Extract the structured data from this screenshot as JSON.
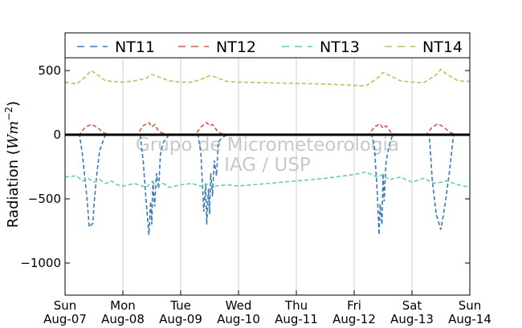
{
  "chart_data": {
    "type": "line",
    "ylabel": "Radiation (",
    "ylabel_unit_base": "Wm",
    "ylabel_unit_exp": "−2",
    "ylabel_close": ")",
    "ylim": [
      -1250,
      600
    ],
    "yticks": [
      500,
      0,
      -500,
      -1000
    ],
    "ytick_labels": [
      "500",
      "0",
      "−500",
      "−1000"
    ],
    "xlim": [
      0,
      7
    ],
    "xticks": [
      0,
      1,
      2,
      3,
      4,
      5,
      6,
      7
    ],
    "xtick_labels": [
      {
        "day": "Sun",
        "date": "Aug-07"
      },
      {
        "day": "Mon",
        "date": "Aug-08"
      },
      {
        "day": "Tue",
        "date": "Aug-09"
      },
      {
        "day": "Wed",
        "date": "Aug-10"
      },
      {
        "day": "Thu",
        "date": "Aug-11"
      },
      {
        "day": "Fri",
        "date": "Aug-12"
      },
      {
        "day": "Sat",
        "date": "Aug-13"
      },
      {
        "day": "Sun",
        "date": "Aug-14"
      }
    ],
    "grid": "vertical",
    "legend_position": "top",
    "watermark": [
      "Grupo de Micrometeorologia",
      "IAG / USP"
    ],
    "series": [
      {
        "name": "NT11",
        "color": "#3b7ab8",
        "x": [
          0.0,
          0.25,
          0.3,
          0.38,
          0.42,
          0.48,
          0.5,
          0.55,
          0.6,
          0.7,
          1.0,
          1.3,
          1.35,
          1.4,
          1.45,
          1.48,
          1.5,
          1.52,
          1.55,
          1.58,
          1.62,
          1.65,
          1.7,
          1.8,
          2.0,
          2.3,
          2.35,
          2.4,
          2.43,
          2.45,
          2.48,
          2.5,
          2.52,
          2.55,
          2.58,
          2.62,
          2.65,
          2.7,
          2.8,
          3.0,
          5.3,
          5.35,
          5.4,
          5.43,
          5.45,
          5.48,
          5.5,
          5.52,
          5.55,
          5.6,
          5.65,
          5.7,
          6.0,
          6.3,
          6.35,
          6.42,
          6.5,
          6.58,
          6.65,
          6.72,
          7.0
        ],
        "y": [
          0,
          0,
          -150,
          -500,
          -720,
          -690,
          -550,
          -300,
          -120,
          0,
          0,
          0,
          -200,
          -500,
          -780,
          -520,
          -700,
          -360,
          -560,
          -300,
          -420,
          -150,
          -60,
          0,
          0,
          0,
          -150,
          -600,
          -380,
          -700,
          -420,
          -620,
          -300,
          -480,
          -200,
          -320,
          -60,
          -30,
          0,
          0,
          0,
          -90,
          -450,
          -780,
          -540,
          -700,
          -300,
          -520,
          -220,
          -90,
          -20,
          0,
          0,
          0,
          -350,
          -620,
          -740,
          -520,
          -280,
          0,
          0
        ]
      },
      {
        "name": "NT12",
        "color": "#cc5a50",
        "x": [
          0.0,
          0.25,
          0.35,
          0.45,
          0.55,
          0.65,
          0.75,
          1.25,
          1.35,
          1.45,
          1.5,
          1.55,
          1.6,
          1.65,
          1.75,
          2.25,
          2.35,
          2.45,
          2.5,
          2.55,
          2.6,
          2.65,
          2.75,
          5.25,
          5.35,
          5.45,
          5.5,
          5.55,
          5.6,
          5.65,
          5.75,
          6.25,
          6.35,
          6.45,
          6.55,
          6.65,
          6.75,
          7.0
        ],
        "y": [
          0,
          0,
          60,
          80,
          60,
          20,
          0,
          0,
          70,
          95,
          60,
          80,
          40,
          20,
          0,
          0,
          60,
          95,
          70,
          80,
          50,
          20,
          0,
          0,
          60,
          85,
          50,
          70,
          40,
          10,
          0,
          0,
          60,
          85,
          60,
          20,
          0,
          0
        ]
      },
      {
        "name": "NT13",
        "color": "#5fcfb0",
        "x": [
          0.0,
          0.2,
          0.3,
          0.4,
          0.5,
          0.6,
          0.7,
          0.8,
          0.9,
          1.0,
          1.2,
          1.4,
          1.5,
          1.6,
          1.7,
          1.8,
          2.0,
          2.2,
          2.4,
          2.5,
          2.6,
          2.8,
          3.0,
          3.5,
          4.0,
          4.5,
          5.0,
          5.2,
          5.4,
          5.5,
          5.6,
          5.8,
          6.0,
          6.2,
          6.4,
          6.6,
          6.8,
          7.0
        ],
        "y": [
          -330,
          -320,
          -360,
          -340,
          -370,
          -350,
          -380,
          -360,
          -390,
          -400,
          -380,
          -410,
          -370,
          -400,
          -380,
          -410,
          -390,
          -380,
          -410,
          -370,
          -400,
          -390,
          -400,
          -380,
          -360,
          -340,
          -310,
          -290,
          -330,
          -310,
          -350,
          -330,
          -370,
          -340,
          -380,
          -360,
          -390,
          -410
        ]
      },
      {
        "name": "NT14",
        "color": "#b5c45e",
        "x": [
          0.0,
          0.2,
          0.35,
          0.45,
          0.55,
          0.7,
          1.0,
          1.2,
          1.4,
          1.5,
          1.6,
          1.8,
          2.0,
          2.2,
          2.4,
          2.5,
          2.6,
          2.8,
          3.0,
          3.5,
          4.0,
          4.5,
          5.0,
          5.2,
          5.4,
          5.5,
          5.6,
          5.8,
          6.0,
          6.2,
          6.4,
          6.5,
          6.6,
          6.8,
          7.0
        ],
        "y": [
          410,
          395,
          450,
          500,
          470,
          420,
          410,
          420,
          440,
          470,
          455,
          420,
          410,
          410,
          440,
          460,
          450,
          415,
          410,
          405,
          400,
          395,
          385,
          380,
          440,
          485,
          465,
          420,
          410,
          405,
          460,
          510,
          470,
          420,
          415
        ]
      }
    ]
  }
}
